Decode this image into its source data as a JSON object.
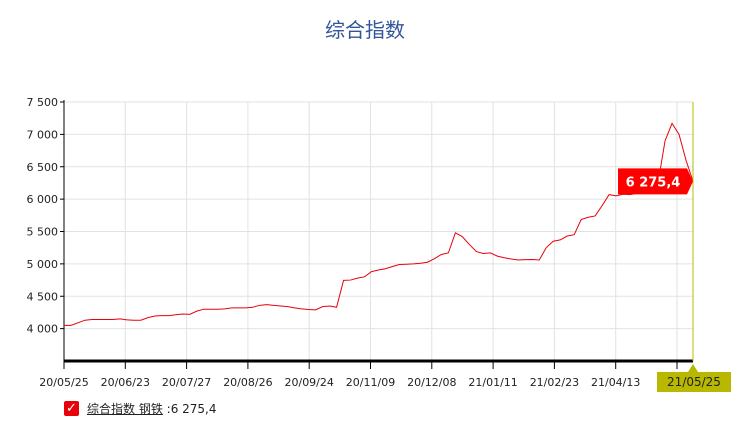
{
  "chart_data": {
    "type": "line",
    "title": "综合指数",
    "xlabel": "",
    "ylabel": "",
    "ylim": [
      3500,
      7500
    ],
    "yticks": [
      "7 500",
      "7 000",
      "6 500",
      "6 000",
      "5 500",
      "5 000",
      "4 500",
      "4 000"
    ],
    "ytick_values": [
      7500,
      7000,
      6500,
      6000,
      5500,
      5000,
      4500,
      4000
    ],
    "xticks": [
      "20/05/25",
      "20/06/23",
      "20/07/27",
      "20/08/26",
      "20/09/24",
      "20/11/09",
      "20/12/08",
      "21/01/11",
      "21/02/23",
      "21/04/13"
    ],
    "cursor_date": "21/05/25",
    "grid": true,
    "series": [
      {
        "name": "综合指数 钢铁",
        "color": "#e8000b",
        "values": [
          4050,
          4050,
          4090,
          4130,
          4140,
          4140,
          4140,
          4140,
          4150,
          4135,
          4130,
          4130,
          4170,
          4195,
          4200,
          4200,
          4215,
          4225,
          4220,
          4270,
          4300,
          4300,
          4300,
          4305,
          4320,
          4320,
          4320,
          4330,
          4360,
          4370,
          4360,
          4350,
          4340,
          4320,
          4305,
          4295,
          4290,
          4340,
          4350,
          4330,
          4745,
          4750,
          4780,
          4800,
          4880,
          4905,
          4925,
          4960,
          4990,
          4995,
          5000,
          5010,
          5025,
          5080,
          5145,
          5170,
          5480,
          5420,
          5300,
          5190,
          5160,
          5170,
          5120,
          5095,
          5075,
          5060,
          5065,
          5068,
          5060,
          5250,
          5350,
          5370,
          5430,
          5450,
          5685,
          5720,
          5740,
          5900,
          6070,
          6050,
          6075,
          6070,
          6090,
          6110,
          6150,
          6250,
          6900,
          7170,
          7000,
          6600,
          6275
        ]
      }
    ],
    "last_value_label": "6 275,4",
    "legend": {
      "position": "bottom-left",
      "checked": true,
      "label": "综合指数 钢铁",
      "value": "6 275,4"
    }
  }
}
